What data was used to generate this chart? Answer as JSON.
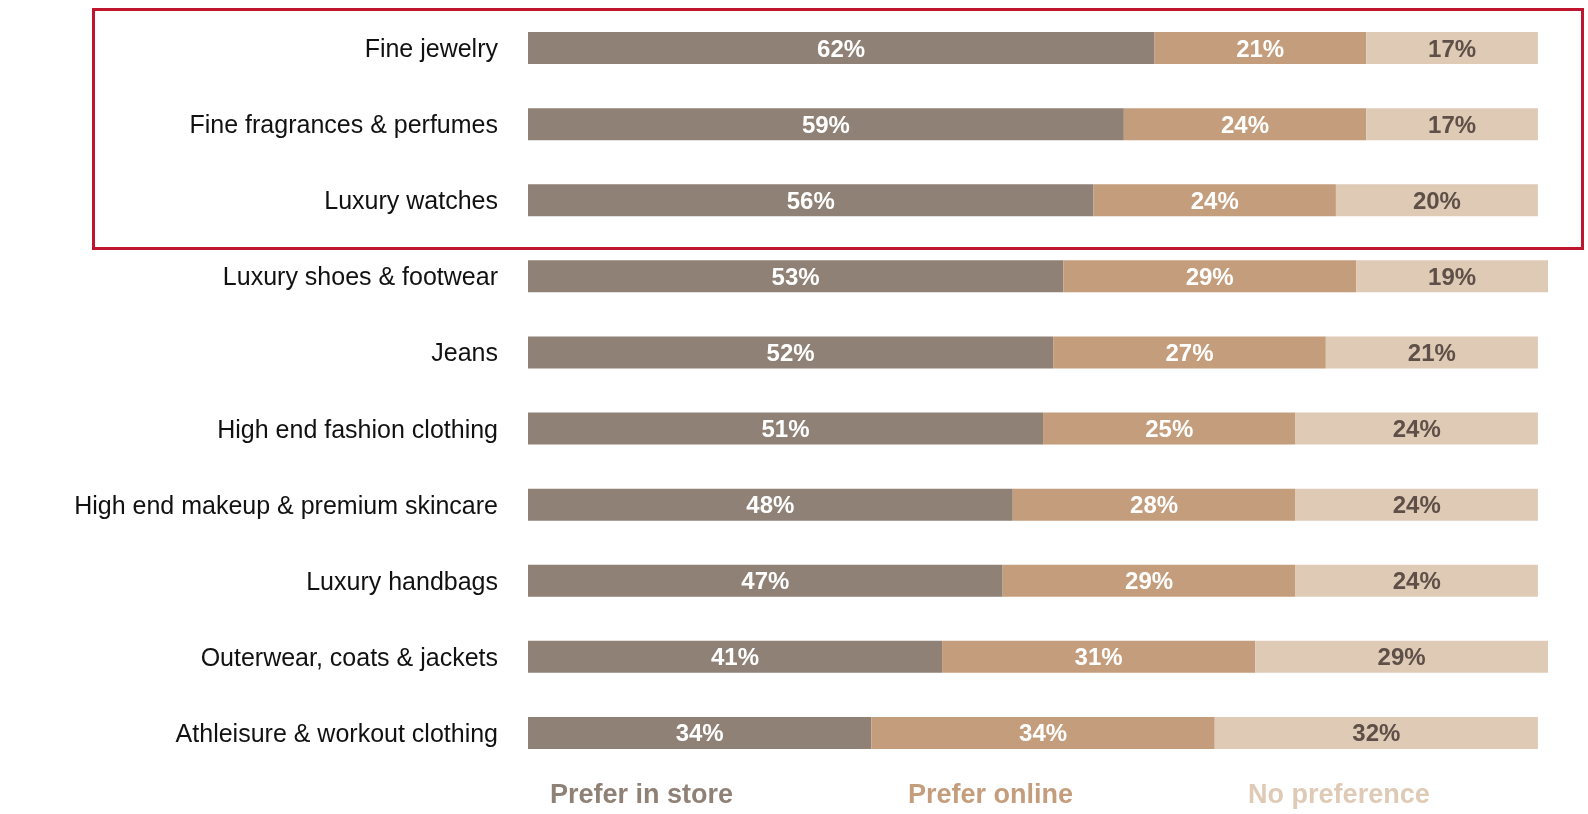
{
  "chart_data": {
    "type": "bar",
    "orientation": "horizontal",
    "stacked": true,
    "legend": "bottom",
    "categories": [
      "Fine jewelry",
      "Fine fragrances & perfumes",
      "Luxury watches",
      "Luxury shoes & footwear",
      "Jeans",
      "High end fashion clothing",
      "High end makeup & premium skincare",
      "Luxury handbags",
      "Outerwear, coats & jackets",
      "Athleisure & workout clothing"
    ],
    "series": [
      {
        "name": "Prefer in store",
        "color": "#8f8176",
        "values": [
          62,
          59,
          56,
          53,
          52,
          51,
          48,
          47,
          41,
          34
        ],
        "value_labels": [
          "62%",
          "59%",
          "56%",
          "53%",
          "52%",
          "51%",
          "48%",
          "47%",
          "41%",
          "34%"
        ]
      },
      {
        "name": "Prefer online",
        "color": "#c49d7c",
        "values": [
          21,
          24,
          24,
          29,
          27,
          25,
          28,
          29,
          31,
          34
        ],
        "value_labels": [
          "21%",
          "24%",
          "24%",
          "29%",
          "27%",
          "25%",
          "28%",
          "29%",
          "31%",
          "34%"
        ]
      },
      {
        "name": "No preference",
        "color": "#dfcab6",
        "values": [
          17,
          17,
          20,
          19,
          21,
          24,
          24,
          24,
          29,
          32
        ],
        "value_labels": [
          "17%",
          "17%",
          "20%",
          "19%",
          "21%",
          "24%",
          "24%",
          "24%",
          "29%",
          "32%"
        ]
      }
    ]
  }
}
